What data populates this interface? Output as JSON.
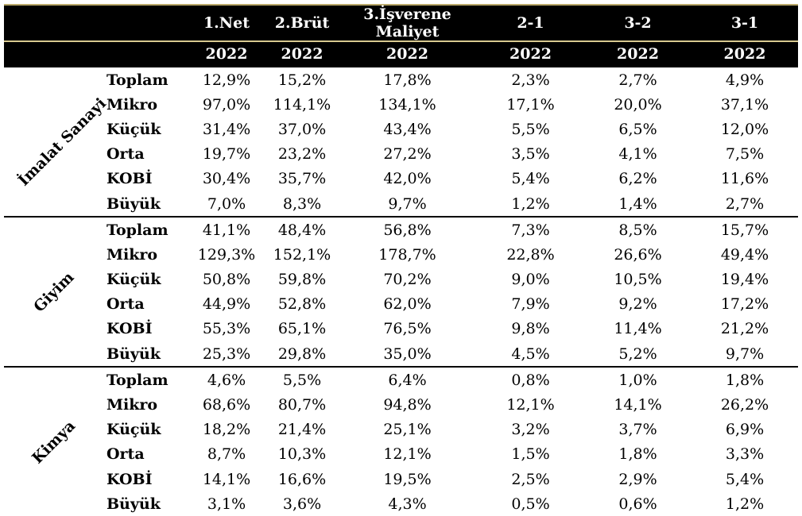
{
  "header": {
    "columns": [
      "",
      "",
      "1.Net",
      "2.Brüt",
      "3.İşverene Maliyet",
      "2-1",
      "3-2",
      "3-1"
    ],
    "years": [
      "",
      "",
      "2022",
      "2022",
      "2022",
      "2022",
      "2022",
      "2022"
    ]
  },
  "groups": [
    {
      "name": "İmalat Sanayi",
      "rows": [
        {
          "label": "Toplam",
          "values": [
            "12,9%",
            "15,2%",
            "17,8%",
            "2,3%",
            "2,7%",
            "4,9%"
          ]
        },
        {
          "label": "Mikro",
          "values": [
            "97,0%",
            "114,1%",
            "134,1%",
            "17,1%",
            "20,0%",
            "37,1%"
          ]
        },
        {
          "label": "Küçük",
          "values": [
            "31,4%",
            "37,0%",
            "43,4%",
            "5,5%",
            "6,5%",
            "12,0%"
          ]
        },
        {
          "label": "Orta",
          "values": [
            "19,7%",
            "23,2%",
            "27,2%",
            "3,5%",
            "4,1%",
            "7,5%"
          ]
        },
        {
          "label": "KOBİ",
          "values": [
            "30,4%",
            "35,7%",
            "42,0%",
            "5,4%",
            "6,2%",
            "11,6%"
          ]
        },
        {
          "label": "Büyük",
          "values": [
            "7,0%",
            "8,3%",
            "9,7%",
            "1,2%",
            "1,4%",
            "2,7%"
          ]
        }
      ]
    },
    {
      "name": "Giyim",
      "rows": [
        {
          "label": "Toplam",
          "values": [
            "41,1%",
            "48,4%",
            "56,8%",
            "7,3%",
            "8,5%",
            "15,7%"
          ]
        },
        {
          "label": "Mikro",
          "values": [
            "129,3%",
            "152,1%",
            "178,7%",
            "22,8%",
            "26,6%",
            "49,4%"
          ]
        },
        {
          "label": "Küçük",
          "values": [
            "50,8%",
            "59,8%",
            "70,2%",
            "9,0%",
            "10,5%",
            "19,4%"
          ]
        },
        {
          "label": "Orta",
          "values": [
            "44,9%",
            "52,8%",
            "62,0%",
            "7,9%",
            "9,2%",
            "17,2%"
          ]
        },
        {
          "label": "KOBİ",
          "values": [
            "55,3%",
            "65,1%",
            "76,5%",
            "9,8%",
            "11,4%",
            "21,2%"
          ]
        },
        {
          "label": "Büyük",
          "values": [
            "25,3%",
            "29,8%",
            "35,0%",
            "4,5%",
            "5,2%",
            "9,7%"
          ]
        }
      ]
    },
    {
      "name": "Kimya",
      "rows": [
        {
          "label": "Toplam",
          "values": [
            "4,6%",
            "5,5%",
            "6,4%",
            "0,8%",
            "1,0%",
            "1,8%"
          ]
        },
        {
          "label": "Mikro",
          "values": [
            "68,6%",
            "80,7%",
            "94,8%",
            "12,1%",
            "14,1%",
            "26,2%"
          ]
        },
        {
          "label": "Küçük",
          "values": [
            "18,2%",
            "21,4%",
            "25,1%",
            "3,2%",
            "3,7%",
            "6,9%"
          ]
        },
        {
          "label": "Orta",
          "values": [
            "8,7%",
            "10,3%",
            "12,1%",
            "1,5%",
            "1,8%",
            "3,3%"
          ]
        },
        {
          "label": "KOBİ",
          "values": [
            "14,1%",
            "16,6%",
            "19,5%",
            "2,5%",
            "2,9%",
            "5,4%"
          ]
        },
        {
          "label": "Büyük",
          "values": [
            "3,1%",
            "3,6%",
            "4,3%",
            "0,5%",
            "0,6%",
            "1,2%"
          ]
        }
      ]
    }
  ]
}
